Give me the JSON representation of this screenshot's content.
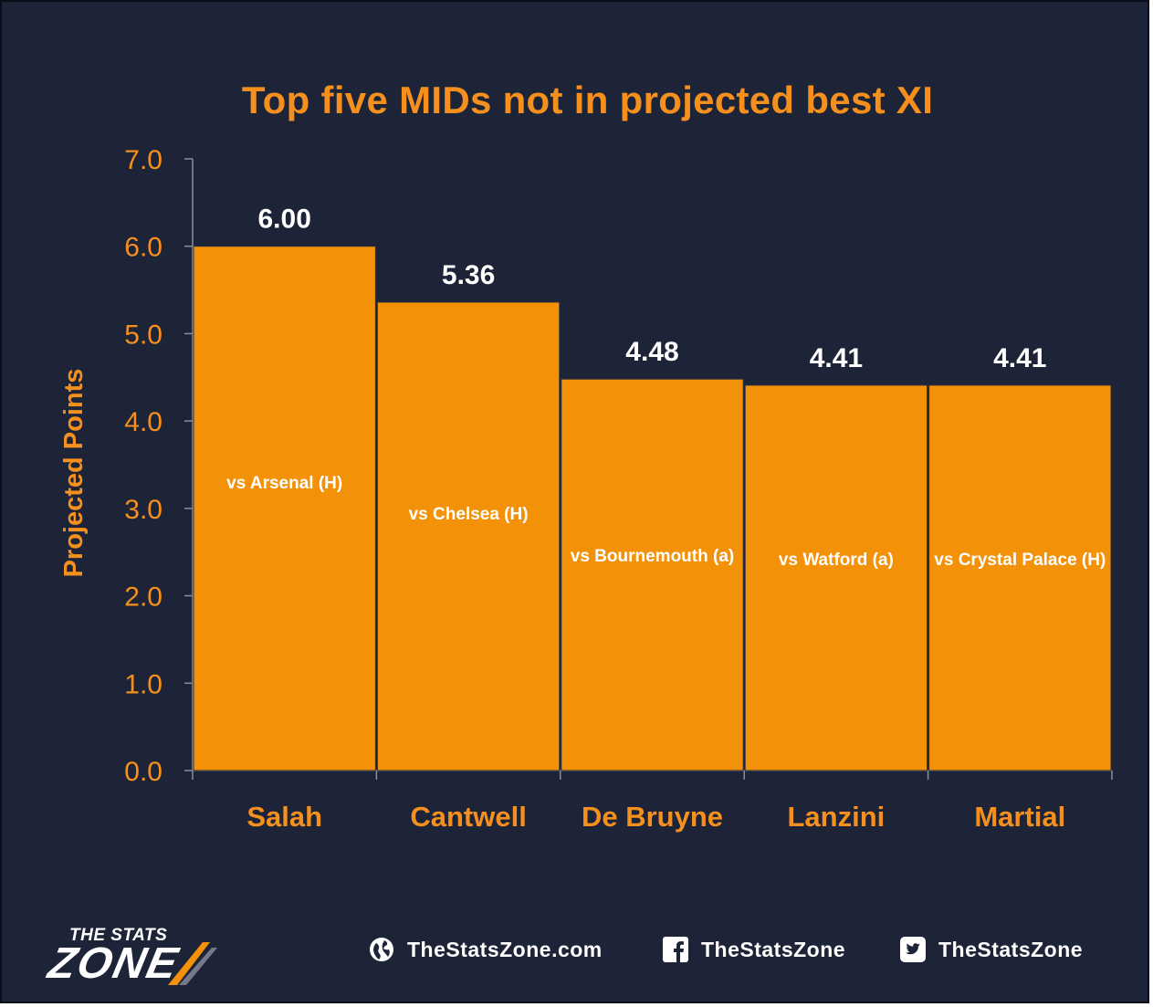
{
  "chart_data": {
    "type": "bar",
    "title": "Top five MIDs not in projected best XI",
    "ylabel": "Projected Points",
    "xlabel": "",
    "ylim": [
      0,
      7
    ],
    "yticks": [
      "0.0",
      "1.0",
      "2.0",
      "3.0",
      "4.0",
      "5.0",
      "6.0",
      "7.0"
    ],
    "categories": [
      "Salah",
      "Cantwell",
      "De Bruyne",
      "Lanzini",
      "Martial"
    ],
    "values": [
      6.0,
      5.36,
      4.48,
      4.41,
      4.41
    ],
    "value_labels": [
      "6.00",
      "5.36",
      "4.48",
      "4.41",
      "4.41"
    ],
    "annotations": [
      "vs Arsenal (H)",
      "vs Chelsea (H)",
      "vs Bournemouth (a)",
      "vs Watford (a)",
      "vs Crystal Palace (H)"
    ],
    "grid": false,
    "colors": {
      "bar": "#f39208",
      "background": "#1e2438",
      "text_accent": "#f5901e",
      "value_text": "#ffffff"
    }
  },
  "footer": {
    "logo_top": "THE STATS",
    "logo_main": "ZONE",
    "website": "TheStatsZone.com",
    "facebook": "TheStatsZone",
    "twitter": "TheStatsZone"
  }
}
